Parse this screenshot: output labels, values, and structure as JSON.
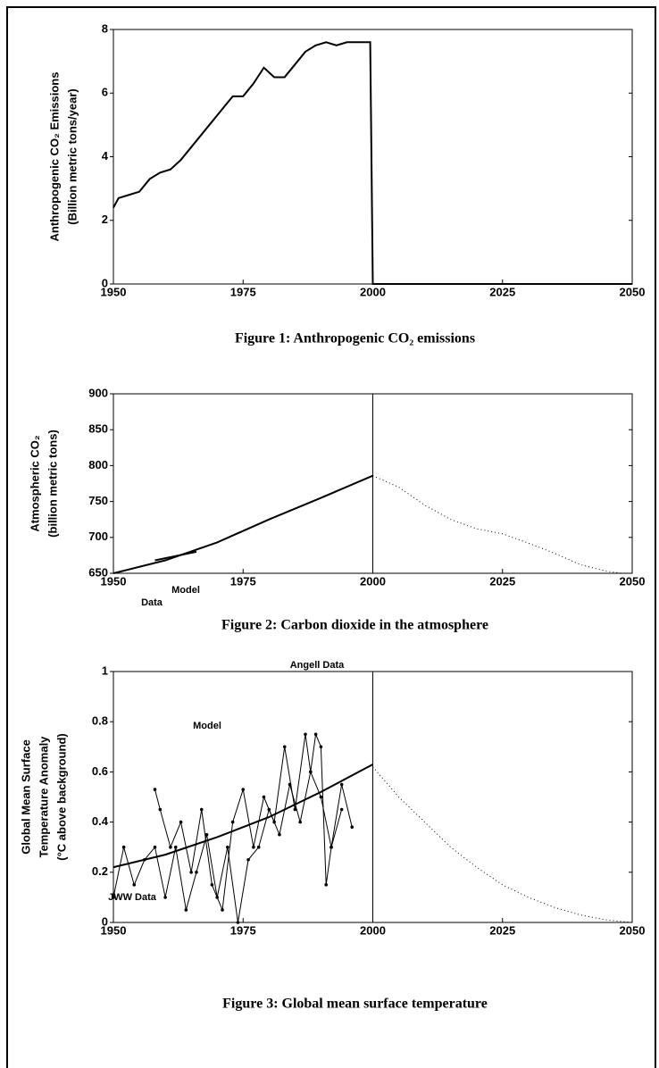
{
  "chart_data": [
    {
      "type": "line",
      "ylabel": [
        "Anthropogenic CO₂ Emissions",
        "(Billion metric tons/year)"
      ],
      "caption": "Figure 1: Anthropogenic CO₂ emissions",
      "xlim": [
        1950,
        2050
      ],
      "xticks": [
        1950,
        1975,
        2000,
        2025,
        2050
      ],
      "ylim": [
        0,
        8
      ],
      "yticks": [
        0,
        2,
        4,
        6,
        8
      ],
      "series": [
        {
          "color": "#000000",
          "style": "solid",
          "x": [
            1950,
            1951,
            1953,
            1955,
            1957,
            1959,
            1961,
            1963,
            1965,
            1967,
            1969,
            1971,
            1973,
            1975,
            1977,
            1979,
            1981,
            1983,
            1985,
            1987,
            1989,
            1991,
            1993,
            1995,
            1999.5,
            2000,
            2050
          ],
          "values": [
            2.4,
            2.7,
            2.8,
            2.9,
            3.3,
            3.5,
            3.6,
            3.9,
            4.3,
            4.7,
            5.1,
            5.5,
            5.9,
            5.9,
            6.3,
            6.8,
            6.5,
            6.5,
            6.9,
            7.3,
            7.5,
            7.6,
            7.5,
            7.6,
            7.6,
            0,
            0
          ]
        }
      ]
    },
    {
      "type": "line",
      "ylabel": [
        "Atmospheric CO₂",
        "(billion metric tons)"
      ],
      "caption": "Figure 2: Carbon dioxide in the atmosphere",
      "xlim": [
        1950,
        2050
      ],
      "xticks": [
        1950,
        1975,
        2000,
        2025,
        2050
      ],
      "ylim": [
        650,
        900
      ],
      "yticks": [
        650,
        700,
        750,
        800,
        850,
        900
      ],
      "vline": 2000,
      "series": [
        {
          "name": "Data",
          "color": "#000000",
          "style": "solid",
          "x": [
            1958,
            1962,
            1966
          ],
          "values": [
            668,
            674,
            680
          ]
        },
        {
          "name": "Model",
          "color": "#000000",
          "style": "solid",
          "x": [
            1950,
            1960,
            1970,
            1980,
            1990,
            2000
          ],
          "values": [
            650,
            668,
            693,
            725,
            755,
            786
          ]
        },
        {
          "color": "#000000",
          "style": "dotted",
          "x": [
            2000,
            2005,
            2010,
            2015,
            2020,
            2025,
            2030,
            2035,
            2040,
            2045,
            2048
          ],
          "values": [
            786,
            770,
            745,
            725,
            712,
            705,
            692,
            678,
            662,
            653,
            650
          ]
        }
      ]
    },
    {
      "type": "line",
      "ylabel": [
        "Global Mean Surface",
        "Temperature Anomaly",
        "(°C above background)"
      ],
      "caption": "Figure 3: Global mean surface temperature",
      "xlim": [
        1950,
        2050
      ],
      "xticks": [
        1950,
        1975,
        2000,
        2025,
        2050
      ],
      "ylim": [
        0,
        1
      ],
      "yticks": [
        0,
        0.2,
        0.4,
        0.6,
        0.8,
        1
      ],
      "vline": 2000,
      "series": [
        {
          "name": "JWW Data",
          "color": "#000000",
          "style": "thin",
          "x": [
            1950,
            1952,
            1954,
            1956,
            1958,
            1960,
            1962,
            1964,
            1966,
            1968,
            1970,
            1972,
            1974,
            1976,
            1978,
            1980,
            1982,
            1984,
            1986,
            1988,
            1990,
            1992,
            1994
          ],
          "values": [
            0.1,
            0.3,
            0.15,
            0.25,
            0.3,
            0.1,
            0.3,
            0.05,
            0.2,
            0.35,
            0.1,
            0.3,
            0.0,
            0.25,
            0.3,
            0.45,
            0.35,
            0.55,
            0.4,
            0.6,
            0.5,
            0.3,
            0.45
          ]
        },
        {
          "name": "Angell Data",
          "color": "#000000",
          "style": "thin",
          "x": [
            1958,
            1959,
            1961,
            1963,
            1965,
            1967,
            1969,
            1971,
            1973,
            1975,
            1977,
            1979,
            1981,
            1983,
            1985,
            1987,
            1988,
            1989,
            1990,
            1991,
            1992,
            1994,
            1996
          ],
          "values": [
            0.53,
            0.45,
            0.3,
            0.4,
            0.2,
            0.45,
            0.15,
            0.05,
            0.4,
            0.53,
            0.3,
            0.5,
            0.4,
            0.7,
            0.45,
            0.75,
            0.6,
            0.75,
            0.7,
            0.15,
            0.3,
            0.55,
            0.38
          ]
        },
        {
          "name": "Model",
          "color": "#000000",
          "style": "solid",
          "x": [
            1950,
            1960,
            1970,
            1980,
            1990,
            2000
          ],
          "values": [
            0.22,
            0.27,
            0.34,
            0.42,
            0.52,
            0.63
          ]
        },
        {
          "color": "#000000",
          "style": "dotted",
          "x": [
            2000,
            2005,
            2010,
            2015,
            2020,
            2025,
            2030,
            2035,
            2040,
            2045,
            2050
          ],
          "values": [
            0.62,
            0.5,
            0.4,
            0.3,
            0.22,
            0.15,
            0.1,
            0.06,
            0.03,
            0.01,
            0
          ]
        }
      ]
    }
  ]
}
